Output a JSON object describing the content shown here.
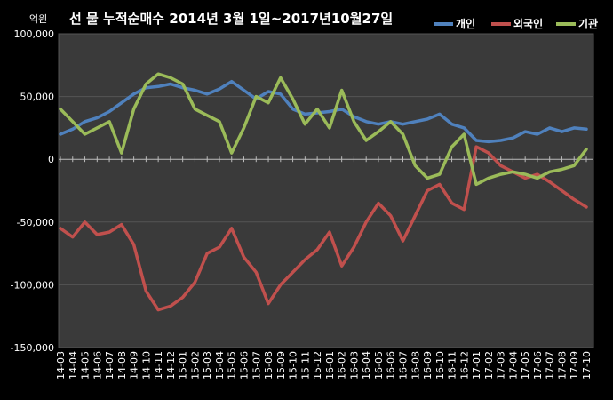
{
  "chart_data": {
    "type": "line",
    "title": "선 물 누적순매수 2014년 3월 1일~2017년10월27일",
    "unit_label": "억원",
    "ylim": [
      -150000,
      100000
    ],
    "yticks": [
      100000,
      50000,
      0,
      -50000,
      -100000,
      -150000
    ],
    "ytick_labels": [
      "100,000",
      "50,000",
      "0",
      "-50,000",
      "-100,000",
      "-150,000"
    ],
    "grid": true,
    "legend": "top-right",
    "categories": [
      "14-03",
      "14-04",
      "14-05",
      "14-06",
      "14-07",
      "14-08",
      "14-09",
      "14-10",
      "14-11",
      "14-12",
      "15-01",
      "15-02",
      "15-03",
      "15-04",
      "15-05",
      "15-06",
      "15-07",
      "15-08",
      "15-09",
      "15-10",
      "15-11",
      "15-12",
      "16-01",
      "16-02",
      "16-03",
      "16-04",
      "16-05",
      "16-06",
      "16-07",
      "16-08",
      "16-09",
      "16-10",
      "16-11",
      "16-12",
      "17-01",
      "17-02",
      "17-03",
      "17-04",
      "17-05",
      "17-06",
      "17-07",
      "17-08",
      "17-09",
      "17-10"
    ],
    "series": [
      {
        "name": "개인",
        "color": "#4f81bd",
        "values": [
          20000,
          24000,
          30000,
          33000,
          38000,
          45000,
          52000,
          57000,
          58000,
          60000,
          57000,
          55000,
          52000,
          56000,
          62000,
          55000,
          48000,
          54000,
          52000,
          40000,
          36000,
          37000,
          38000,
          40000,
          34000,
          30000,
          28000,
          30000,
          28000,
          30000,
          32000,
          36000,
          28000,
          25000,
          15000,
          14000,
          15000,
          17000,
          22000,
          20000,
          25000,
          22000,
          25000,
          24000
        ]
      },
      {
        "name": "외국인",
        "color": "#c0504d",
        "values": [
          -55000,
          -62000,
          -50000,
          -60000,
          -58000,
          -52000,
          -68000,
          -105000,
          -120000,
          -117000,
          -110000,
          -98000,
          -75000,
          -70000,
          -55000,
          -78000,
          -90000,
          -115000,
          -100000,
          -90000,
          -80000,
          -72000,
          -58000,
          -85000,
          -70000,
          -50000,
          -35000,
          -45000,
          -65000,
          -45000,
          -25000,
          -20000,
          -35000,
          -40000,
          10000,
          5000,
          -5000,
          -10000,
          -15000,
          -12000,
          -18000,
          -25000,
          -32000,
          -38000
        ]
      },
      {
        "name": "기관",
        "color": "#9bbb59",
        "values": [
          40000,
          30000,
          20000,
          25000,
          30000,
          5000,
          40000,
          60000,
          68000,
          65000,
          60000,
          40000,
          35000,
          30000,
          5000,
          25000,
          50000,
          45000,
          65000,
          48000,
          28000,
          40000,
          25000,
          55000,
          30000,
          15000,
          22000,
          30000,
          20000,
          -5000,
          -15000,
          -12000,
          10000,
          20000,
          -20000,
          -15000,
          -12000,
          -10000,
          -12000,
          -15000,
          -10000,
          -8000,
          -5000,
          8000
        ]
      }
    ]
  }
}
